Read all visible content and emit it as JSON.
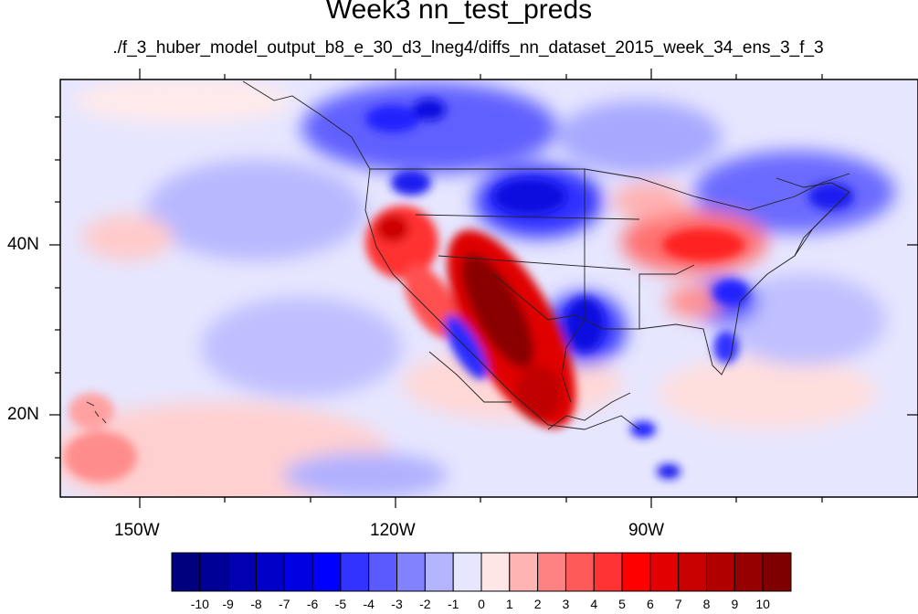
{
  "title": "Week3 nn_test_preds",
  "subtitle": "./f_3_huber_model_output_b8_e_30_d3_lneg4/diffs_nn_dataset_2015_week_34_ens_3_f_3",
  "axes": {
    "x_ticks": [
      "150W",
      "120W",
      "90W"
    ],
    "y_ticks": [
      "40N",
      "20N"
    ]
  },
  "colorbar": {
    "labels": [
      "-10",
      "-9",
      "-8",
      "-7",
      "-6",
      "-5",
      "-4",
      "-3",
      "-2",
      "-1",
      "0",
      "1",
      "2",
      "3",
      "4",
      "5",
      "6",
      "7",
      "8",
      "9",
      "10"
    ],
    "colors": [
      "#00007f",
      "#000096",
      "#0000b0",
      "#0000c9",
      "#0000e3",
      "#0000ff",
      "#3333ff",
      "#5a5aff",
      "#8282ff",
      "#b4b4ff",
      "#e6e6ff",
      "#ffe6e6",
      "#ffb4b4",
      "#ff8282",
      "#ff5a5a",
      "#ff3333",
      "#ff0000",
      "#e30000",
      "#c90000",
      "#b00000",
      "#960000",
      "#7f0000"
    ]
  }
}
